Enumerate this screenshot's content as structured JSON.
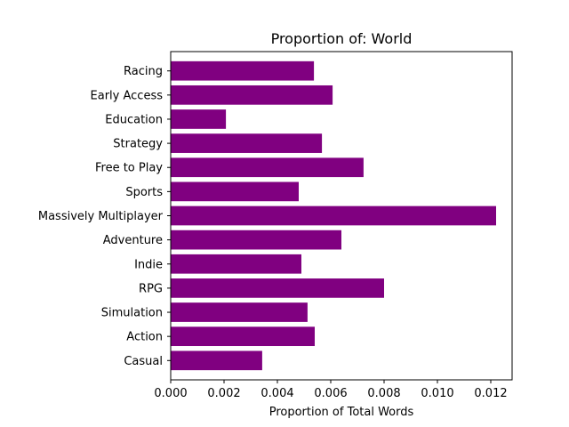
{
  "chart_data": {
    "type": "bar",
    "orientation": "horizontal",
    "title": "Proportion of: World",
    "xlabel": "Proportion of Total Words",
    "ylabel": "",
    "xlim": [
      0,
      0.0128
    ],
    "x_ticks": [
      "0.000",
      "0.002",
      "0.004",
      "0.006",
      "0.008",
      "0.010",
      "0.012"
    ],
    "x_tick_values": [
      0,
      0.002,
      0.004,
      0.006,
      0.008,
      0.01,
      0.012
    ],
    "categories": [
      "Casual",
      "Action",
      "Simulation",
      "RPG",
      "Indie",
      "Adventure",
      "Massively Multiplayer",
      "Sports",
      "Free to Play",
      "Strategy",
      "Education",
      "Early Access",
      "Racing"
    ],
    "values": [
      0.00343,
      0.0054,
      0.00513,
      0.008,
      0.0049,
      0.0064,
      0.0122,
      0.0048,
      0.00723,
      0.00567,
      0.00207,
      0.00607,
      0.00537
    ],
    "bar_color": "#800080",
    "grid": false,
    "legend": "none"
  }
}
